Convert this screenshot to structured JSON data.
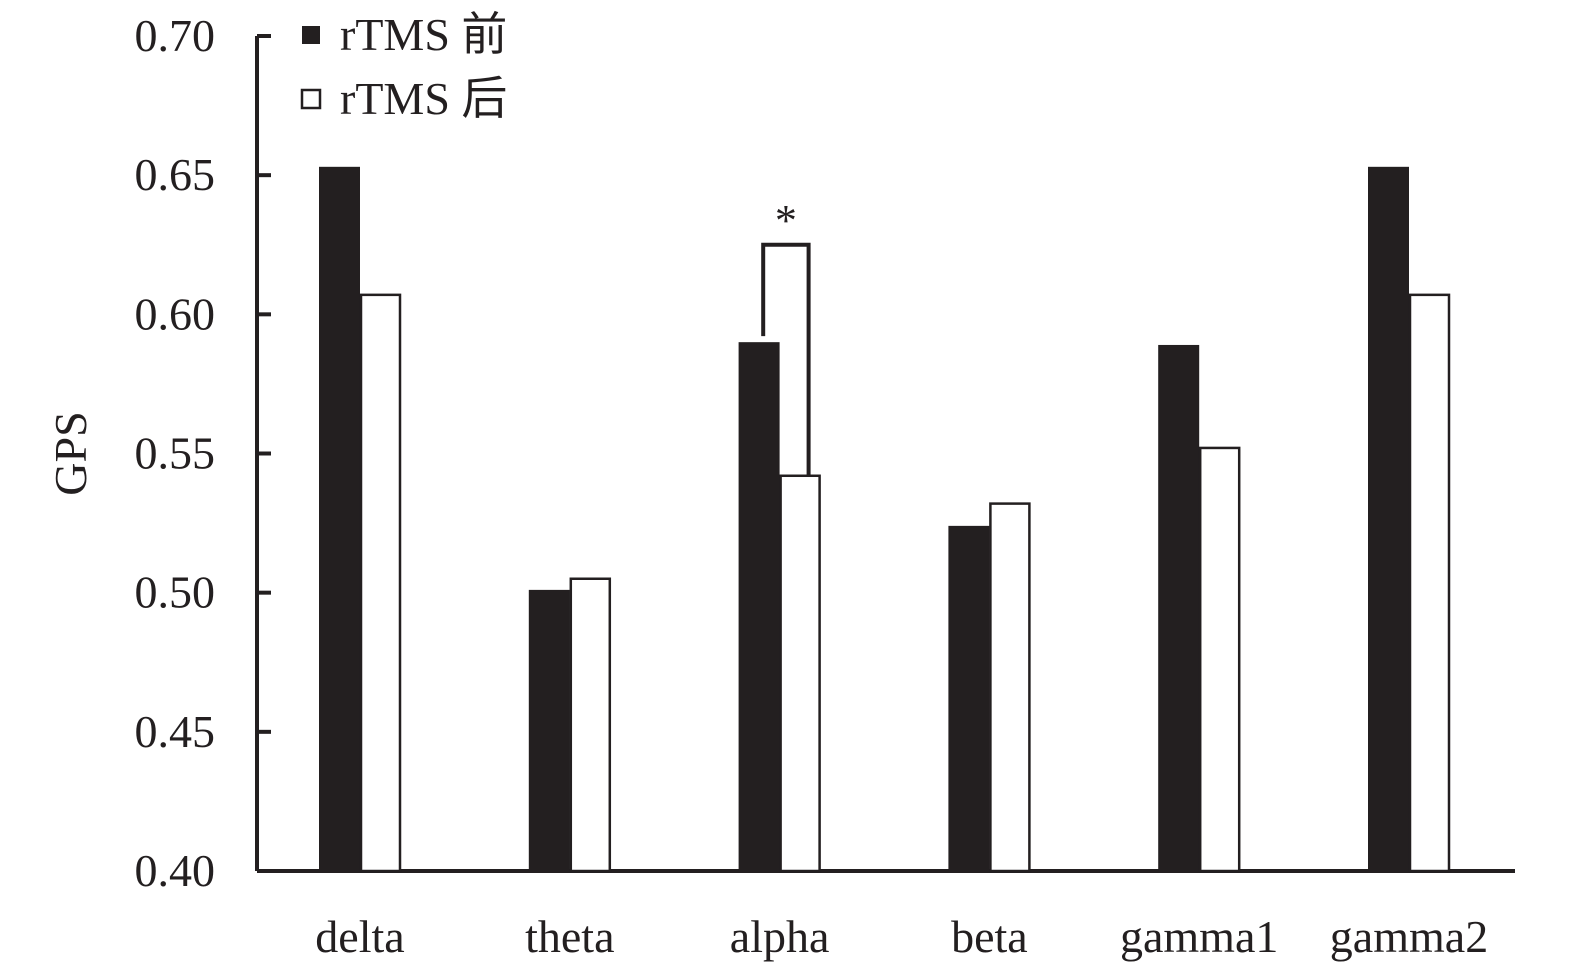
{
  "chart_data": {
    "type": "bar",
    "title": "",
    "xlabel": "",
    "ylabel": "GPS",
    "ylim": [
      0.4,
      0.7
    ],
    "yticks": [
      "0.40",
      "0.45",
      "0.50",
      "0.55",
      "0.60",
      "0.65",
      "0.70"
    ],
    "categories": [
      "delta",
      "theta",
      "alpha",
      "beta",
      "gamma1",
      "gamma2"
    ],
    "series": [
      {
        "name": "rTMS 前",
        "color": "#231f20",
        "values": [
          0.653,
          0.501,
          0.59,
          0.524,
          0.589,
          0.653
        ]
      },
      {
        "name": "rTMS 后",
        "color": "#ffffff",
        "values": [
          0.607,
          0.505,
          0.542,
          0.532,
          0.552,
          0.607
        ]
      }
    ],
    "legend_position": "top-left",
    "grid": false,
    "annotations": [
      {
        "category": "alpha",
        "text": "*",
        "bracket_top": 0.625
      }
    ]
  }
}
